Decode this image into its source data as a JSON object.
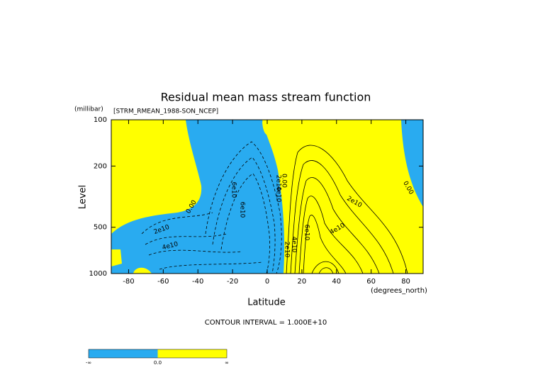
{
  "chart_data": {
    "type": "contour",
    "title": "Residual mean mass stream function",
    "subtitle": "[STRM_RMEAN_1988-SON_NCEP]",
    "y_units": "(millibar)",
    "y_label": "Level",
    "x_label": "Latitude",
    "x_units": "(degrees_north)",
    "footnote": "CONTOUR INTERVAL = 1.000E+10",
    "xlim": [
      -90,
      90
    ],
    "xticks": [
      -80,
      -60,
      -40,
      -20,
      0,
      20,
      40,
      60,
      80
    ],
    "ylim": [
      1000,
      100
    ],
    "yticks": [
      100,
      200,
      500,
      1000
    ],
    "ylog": true,
    "colors": [
      "#29abf0",
      "#ffff00"
    ],
    "colorbar_labels": [
      "-∞",
      "0.0",
      "∞"
    ],
    "contour_labels": [
      "0.00",
      "0.00",
      "0.00",
      "2e10",
      "4e10",
      "6e10",
      "6e10",
      "2e10",
      "4e10",
      "2e10",
      "4e10",
      "6e10",
      "4e10",
      "2e10"
    ]
  }
}
